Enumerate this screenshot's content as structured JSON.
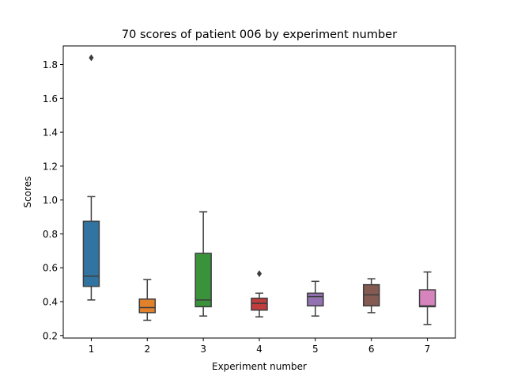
{
  "chart_data": {
    "type": "box",
    "title": "70 scores of patient 006 by experiment number",
    "xlabel": "Experiment number",
    "ylabel": "Scores",
    "categories": [
      "1",
      "2",
      "3",
      "4",
      "5",
      "6",
      "7"
    ],
    "ylim": [
      0.185,
      1.91
    ],
    "yticks": [
      "0.2",
      "0.4",
      "0.6",
      "0.8",
      "1.0",
      "1.2",
      "1.4",
      "1.6",
      "1.8"
    ],
    "grid": false,
    "legend": "none",
    "boxes": [
      {
        "category": "1",
        "whisker_low": 0.41,
        "q1": 0.49,
        "median": 0.55,
        "q3": 0.875,
        "whisker_high": 1.02,
        "outliers": [
          1.84
        ],
        "color": "#3274a1"
      },
      {
        "category": "2",
        "whisker_low": 0.29,
        "q1": 0.335,
        "median": 0.365,
        "q3": 0.415,
        "whisker_high": 0.53,
        "outliers": [],
        "color": "#e1812c"
      },
      {
        "category": "3",
        "whisker_low": 0.315,
        "q1": 0.37,
        "median": 0.41,
        "q3": 0.685,
        "whisker_high": 0.93,
        "outliers": [],
        "color": "#3a923a"
      },
      {
        "category": "4",
        "whisker_low": 0.31,
        "q1": 0.35,
        "median": 0.39,
        "q3": 0.42,
        "whisker_high": 0.45,
        "outliers": [
          0.565
        ],
        "color": "#c03d3e"
      },
      {
        "category": "5",
        "whisker_low": 0.315,
        "q1": 0.375,
        "median": 0.43,
        "q3": 0.45,
        "whisker_high": 0.52,
        "outliers": [],
        "color": "#9372b2"
      },
      {
        "category": "6",
        "whisker_low": 0.335,
        "q1": 0.375,
        "median": 0.44,
        "q3": 0.5,
        "whisker_high": 0.535,
        "outliers": [],
        "color": "#845b53"
      },
      {
        "category": "7",
        "whisker_low": 0.265,
        "q1": 0.37,
        "median": 0.375,
        "q3": 0.47,
        "whisker_high": 0.575,
        "outliers": [],
        "color": "#d684bd"
      }
    ]
  }
}
